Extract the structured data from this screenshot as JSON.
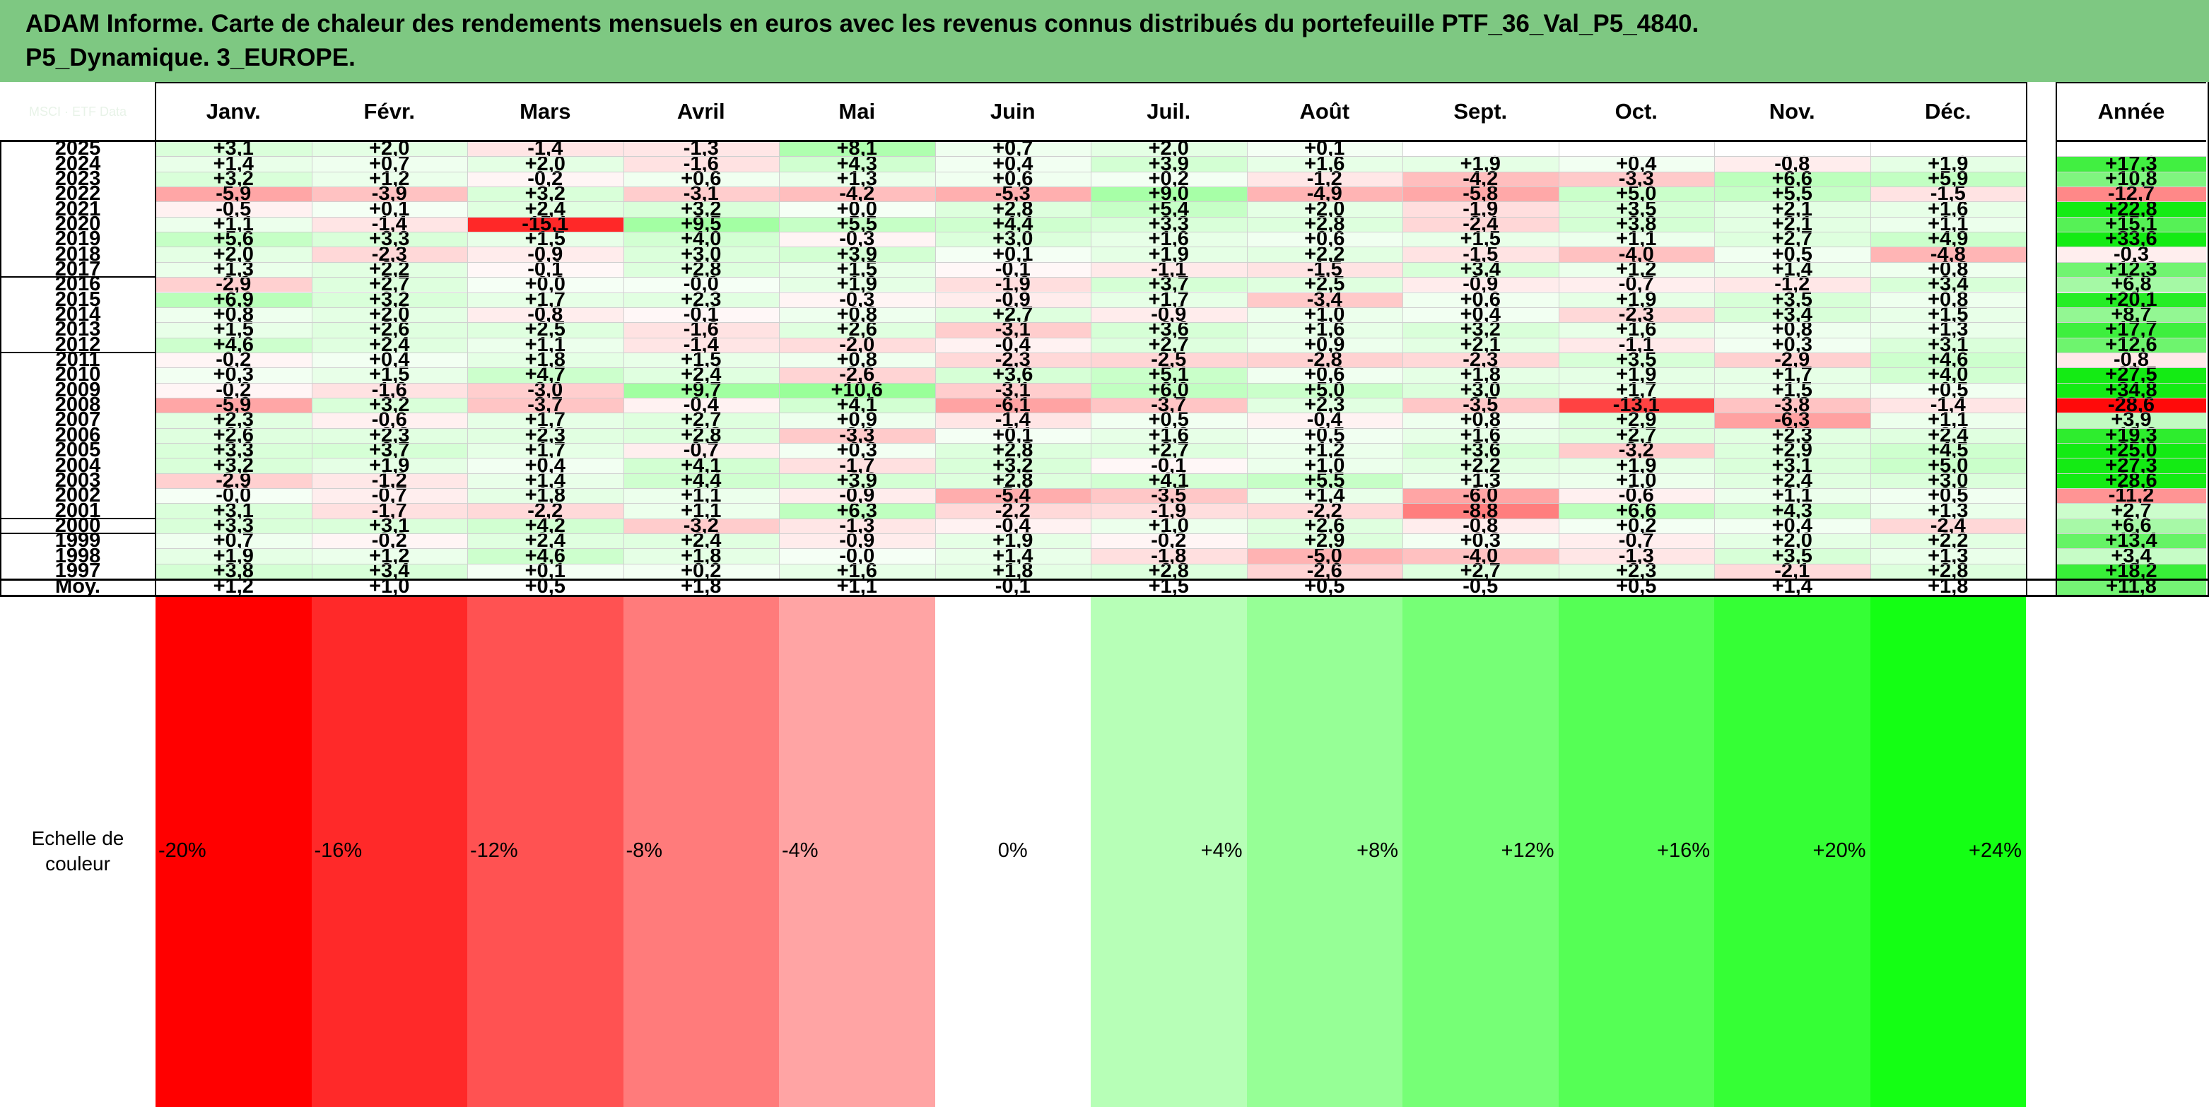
{
  "title": {
    "line1": "ADAM Informe. Carte de chaleur des rendements mensuels en euros avec les revenus connus distribués du portefeuille PTF_36_Val_P5_4840.",
    "line2": "P5_Dynamique. 3_EUROPE."
  },
  "corner_watermark": "MSCI · ETF Data",
  "colors": {
    "title_bg": "#7ec882",
    "neg_max": "#ff0000",
    "pos_max": "#00e000"
  },
  "chart_data": {
    "type": "heatmap",
    "columns": [
      "Janv.",
      "Févr.",
      "Mars",
      "Avril",
      "Mai",
      "Juin",
      "Juil.",
      "Août",
      "Sept.",
      "Oct.",
      "Nov.",
      "Déc."
    ],
    "year_column": "Année",
    "rows": [
      {
        "year": "2025",
        "values": [
          "+3,1",
          "+2,0",
          "-1,4",
          "-1,3",
          "+8,1",
          "+0,7",
          "+2,0",
          "+0,1",
          "",
          "",
          "",
          ""
        ],
        "annual": ""
      },
      {
        "year": "2024",
        "values": [
          "+1,4",
          "+0,7",
          "+2,0",
          "-1,6",
          "+4,3",
          "+0,4",
          "+3,9",
          "+1,6",
          "+1,9",
          "+0,4",
          "-0,8",
          "+1,9"
        ],
        "annual": "+17,3"
      },
      {
        "year": "2023",
        "values": [
          "+3,2",
          "+1,2",
          "-0,2",
          "+0,6",
          "+1,3",
          "+0,6",
          "+0,2",
          "-1,2",
          "-4,2",
          "-3,3",
          "+6,6",
          "+5,9"
        ],
        "annual": "+10,8"
      },
      {
        "year": "2022",
        "values": [
          "-5,9",
          "-3,9",
          "+3,2",
          "-3,1",
          "-4,2",
          "-5,3",
          "+9,0",
          "-4,9",
          "-5,8",
          "+5,0",
          "+5,5",
          "-1,5"
        ],
        "annual": "-12,7"
      },
      {
        "year": "2021",
        "values": [
          "-0,5",
          "+0,1",
          "+2,4",
          "+3,2",
          "+0,0",
          "+2,8",
          "+5,4",
          "+2,0",
          "-1,9",
          "+3,5",
          "+2,1",
          "+1,6"
        ],
        "annual": "+22,8"
      },
      {
        "year": "2020",
        "values": [
          "+1,1",
          "-1,4",
          "-15,1",
          "+9,5",
          "+5,5",
          "+4,4",
          "+3,3",
          "+2,8",
          "-2,4",
          "+3,8",
          "+2,1",
          "+1,1"
        ],
        "annual": "+15,1"
      },
      {
        "year": "2019",
        "values": [
          "+5,6",
          "+3,3",
          "+1,5",
          "+4,0",
          "-0,3",
          "+3,0",
          "+1,6",
          "+0,6",
          "+1,5",
          "+1,1",
          "+2,7",
          "+4,9"
        ],
        "annual": "+33,6"
      },
      {
        "year": "2018",
        "values": [
          "+2,0",
          "-2,3",
          "-0,9",
          "+3,0",
          "+3,9",
          "+0,1",
          "+1,9",
          "+2,2",
          "-1,5",
          "-4,0",
          "+0,5",
          "-4,8"
        ],
        "annual": "-0,3"
      },
      {
        "year": "2017",
        "values": [
          "+1,3",
          "+2,2",
          "-0,1",
          "+2,8",
          "+1,5",
          "-0,1",
          "-1,1",
          "-1,5",
          "+3,4",
          "+1,2",
          "+1,4",
          "+0,8"
        ],
        "annual": "+12,3"
      },
      {
        "year": "2016",
        "values": [
          "-2,9",
          "+2,7",
          "+0,0",
          "-0,0",
          "+1,9",
          "-1,9",
          "+3,7",
          "+2,5",
          "-0,9",
          "-0,7",
          "-1,2",
          "+3,4"
        ],
        "annual": "+6,8"
      },
      {
        "year": "2015",
        "values": [
          "+6,9",
          "+3,2",
          "+1,7",
          "+2,3",
          "-0,3",
          "-0,9",
          "+1,7",
          "-3,4",
          "+0,6",
          "+1,9",
          "+3,5",
          "+0,8"
        ],
        "annual": "+20,1"
      },
      {
        "year": "2014",
        "values": [
          "+0,8",
          "+2,0",
          "-0,8",
          "-0,1",
          "+0,8",
          "+2,7",
          "-0,9",
          "+1,0",
          "+0,4",
          "-2,3",
          "+3,4",
          "+1,5"
        ],
        "annual": "+8,7"
      },
      {
        "year": "2013",
        "values": [
          "+1,5",
          "+2,6",
          "+2,5",
          "-1,6",
          "+2,6",
          "-3,1",
          "+3,6",
          "+1,6",
          "+3,2",
          "+1,6",
          "+0,8",
          "+1,3"
        ],
        "annual": "+17,7"
      },
      {
        "year": "2012",
        "values": [
          "+4,6",
          "+2,4",
          "+1,1",
          "-1,4",
          "-2,0",
          "-0,4",
          "+2,7",
          "+0,9",
          "+2,1",
          "-1,1",
          "+0,3",
          "+3,1"
        ],
        "annual": "+12,6"
      },
      {
        "year": "2011",
        "values": [
          "-0,2",
          "+0,4",
          "+1,8",
          "+1,5",
          "+0,8",
          "-2,3",
          "-2,5",
          "-2,8",
          "-2,3",
          "+3,5",
          "-2,9",
          "+4,6"
        ],
        "annual": "-0,8"
      },
      {
        "year": "2010",
        "values": [
          "+0,3",
          "+1,5",
          "+4,7",
          "+2,4",
          "-2,6",
          "+3,6",
          "+5,1",
          "+0,6",
          "+1,8",
          "+1,9",
          "+1,7",
          "+4,0"
        ],
        "annual": "+27,5"
      },
      {
        "year": "2009",
        "values": [
          "-0,2",
          "-1,6",
          "-3,0",
          "+9,7",
          "+10,6",
          "-3,1",
          "+6,0",
          "+5,0",
          "+3,0",
          "+1,7",
          "+1,5",
          "+0,5"
        ],
        "annual": "+34,8"
      },
      {
        "year": "2008",
        "values": [
          "-5,9",
          "+3,2",
          "-3,7",
          "-0,4",
          "+4,1",
          "-6,1",
          "-3,7",
          "+2,3",
          "-3,5",
          "-13,1",
          "-3,8",
          "-1,4"
        ],
        "annual": "-28,6"
      },
      {
        "year": "2007",
        "values": [
          "+2,3",
          "-0,6",
          "+1,7",
          "+2,7",
          "+0,9",
          "-1,4",
          "+0,5",
          "-0,4",
          "+0,8",
          "+2,9",
          "-6,3",
          "+1,1"
        ],
        "annual": "+3,9"
      },
      {
        "year": "2006",
        "values": [
          "+2,6",
          "+2,3",
          "+2,3",
          "+2,8",
          "-3,3",
          "+0,1",
          "+1,6",
          "+0,5",
          "+1,6",
          "+2,7",
          "+2,3",
          "+2,4"
        ],
        "annual": "+19,3"
      },
      {
        "year": "2005",
        "values": [
          "+3,3",
          "+3,7",
          "+1,7",
          "-0,7",
          "+0,3",
          "+2,8",
          "+2,7",
          "+1,2",
          "+3,6",
          "-3,2",
          "+2,9",
          "+4,5"
        ],
        "annual": "+25,0"
      },
      {
        "year": "2004",
        "values": [
          "+3,2",
          "+1,9",
          "+0,4",
          "+4,1",
          "-1,7",
          "+3,2",
          "-0,1",
          "+1,0",
          "+2,2",
          "+1,9",
          "+3,1",
          "+5,0"
        ],
        "annual": "+27,3"
      },
      {
        "year": "2003",
        "values": [
          "-2,9",
          "-1,2",
          "+1,4",
          "+4,4",
          "+3,9",
          "+2,8",
          "+4,1",
          "+5,5",
          "+1,3",
          "+1,0",
          "+2,4",
          "+3,0"
        ],
        "annual": "+28,6"
      },
      {
        "year": "2002",
        "values": [
          "-0,0",
          "-0,7",
          "+1,8",
          "+1,1",
          "-0,9",
          "-5,4",
          "-3,5",
          "+1,4",
          "-6,0",
          "-0,6",
          "+1,1",
          "+0,5"
        ],
        "annual": "-11,2"
      },
      {
        "year": "2001",
        "values": [
          "+3,1",
          "-1,7",
          "-2,2",
          "+1,1",
          "+6,3",
          "-2,2",
          "-1,9",
          "-2,2",
          "-8,8",
          "+6,6",
          "+4,3",
          "+1,3"
        ],
        "annual": "+2,7"
      },
      {
        "year": "2000",
        "values": [
          "+3,3",
          "+3,1",
          "+4,2",
          "-3,2",
          "-1,3",
          "-0,4",
          "+1,0",
          "+2,6",
          "-0,8",
          "+0,2",
          "+0,4",
          "-2,4"
        ],
        "annual": "+6,6"
      },
      {
        "year": "1999",
        "values": [
          "+0,7",
          "-0,2",
          "+2,4",
          "+2,4",
          "-0,9",
          "+1,9",
          "-0,2",
          "+2,9",
          "+0,3",
          "-0,7",
          "+2,0",
          "+2,2"
        ],
        "annual": "+13,4"
      },
      {
        "year": "1998",
        "values": [
          "+1,9",
          "+1,2",
          "+4,6",
          "+1,8",
          "-0,0",
          "+1,4",
          "-1,8",
          "-5,0",
          "-4,0",
          "-1,3",
          "+3,5",
          "+1,3"
        ],
        "annual": "+3,4"
      },
      {
        "year": "1997",
        "values": [
          "+3,8",
          "+3,4",
          "+0,1",
          "+0,2",
          "+1,6",
          "+1,8",
          "+2,8",
          "-2,6",
          "+2,7",
          "+2,3",
          "-2,1",
          "+2,8"
        ],
        "annual": "+18,2"
      }
    ],
    "average_row": {
      "label": "Moy.",
      "values": [
        "+1,2",
        "+1,0",
        "+0,5",
        "+1,8",
        "+1,1",
        "-0,1",
        "+1,5",
        "+0,5",
        "-0,5",
        "+0,5",
        "+1,4",
        "+1,8"
      ],
      "annual": "+11,8"
    },
    "scale": {
      "label": "Echelle de couleur",
      "stops": [
        "-20%",
        "-16%",
        "-12%",
        "-8%",
        "-4%",
        "0%",
        "+4%",
        "+8%",
        "+12%",
        "+16%",
        "+20%",
        "+24%"
      ],
      "stop_values": [
        -20,
        -16,
        -12,
        -8,
        -4,
        0,
        4,
        8,
        12,
        16,
        20,
        24
      ]
    }
  }
}
